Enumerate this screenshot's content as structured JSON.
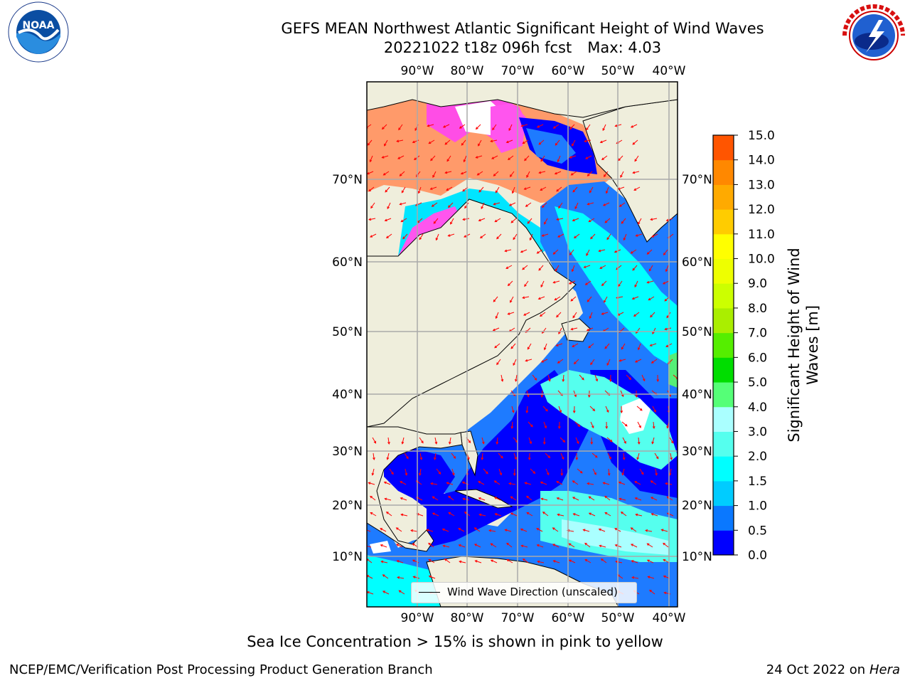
{
  "title": {
    "line1": "GEFS MEAN Northwest Atlantic Significant Height of Wind Waves",
    "line2_run": "20221022 t18z 096h fcst",
    "line2_max": "Max: 4.03"
  },
  "logos": {
    "left": {
      "label": "NOAA",
      "ring_text": "NATIONAL OCEANIC AND ATMOSPHERIC ADMINISTRATION · U.S. DEPARTMENT OF COMMERCE"
    },
    "right": {
      "ring_text": "NATIONAL WEATHER SERVICE"
    }
  },
  "map": {
    "lon_labels": [
      "90°W",
      "80°W",
      "70°W",
      "60°W",
      "50°W",
      "40°W"
    ],
    "lat_labels": [
      "70°N",
      "60°N",
      "50°N",
      "40°N",
      "30°N",
      "20°N",
      "10°N"
    ],
    "legend_label": "Wind Wave Direction (unscaled)"
  },
  "colorbar": {
    "label_line1": "Significant Height of Wind",
    "label_line2": "Waves [m]",
    "ticks": [
      "0.0",
      "0.5",
      "1.0",
      "1.5",
      "2.0",
      "3.0",
      "4.0",
      "5.0",
      "6.0",
      "7.0",
      "8.0",
      "9.0",
      "10.0",
      "11.0",
      "12.0",
      "13.0",
      "14.0",
      "15.0"
    ],
    "colors": [
      "#0000ff",
      "#0a78ff",
      "#00ccff",
      "#00ffff",
      "#55ffee",
      "#aaffff",
      "#55ff77",
      "#00dd00",
      "#55ee00",
      "#aaee00",
      "#ccff00",
      "#eeff00",
      "#ffff00",
      "#ffcc00",
      "#ffaa00",
      "#ff8800",
      "#ff5500",
      "#ff2200"
    ]
  },
  "footer": {
    "note": "Sea Ice Concentration > 15% is shown in pink to yellow",
    "branch": "NCEP/EMC/Verification Post Processing Product Generation Branch",
    "date": "24 Oct 2022 on",
    "host": "Hera"
  }
}
